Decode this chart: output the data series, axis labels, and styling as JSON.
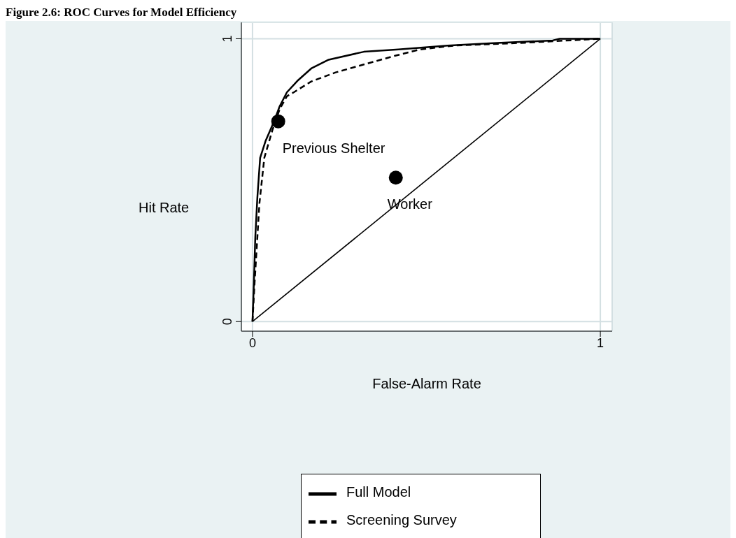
{
  "chart_data": {
    "type": "line",
    "title": "Figure 2.6: ROC Curves for Model Efficiency",
    "xlabel": "False-Alarm Rate",
    "ylabel": "Hit Rate",
    "xlim": [
      -0.032,
      1.034
    ],
    "ylim": [
      -0.034,
      1.058
    ],
    "xticks": [
      0,
      1
    ],
    "yticks": [
      0,
      1
    ],
    "grid": true,
    "legend": "bottom",
    "series": [
      {
        "name": "Full Model",
        "color": "#000000",
        "line_style": "solid",
        "marker": "none",
        "x": [
          0,
          0.004,
          0.008,
          0.014,
          0.022,
          0.038,
          0.062,
          0.078,
          0.099,
          0.129,
          0.169,
          0.219,
          0.32,
          0.42,
          0.561,
          0.682,
          0.863,
          0.883,
          1
        ],
        "values": [
          0,
          0.137,
          0.298,
          0.439,
          0.579,
          0.64,
          0.708,
          0.761,
          0.811,
          0.851,
          0.895,
          0.926,
          0.954,
          0.962,
          0.976,
          0.984,
          0.994,
          1,
          1
        ]
      },
      {
        "name": "Screening Survey",
        "color": "#000000",
        "line_style": "dashed",
        "marker": "none",
        "x": [
          0,
          0.006,
          0.012,
          0.02,
          0.034,
          0.058,
          0.078,
          0.099,
          0.119,
          0.169,
          0.239,
          0.32,
          0.41,
          0.481,
          0.581,
          0.783,
          1
        ],
        "values": [
          0,
          0.137,
          0.258,
          0.419,
          0.579,
          0.68,
          0.751,
          0.797,
          0.811,
          0.849,
          0.881,
          0.909,
          0.94,
          0.962,
          0.976,
          0.986,
          1
        ]
      },
      {
        "type": "line",
        "color": "#000000",
        "line_style": "solid",
        "marker": "none",
        "x": [
          0,
          1
        ],
        "values": [
          0,
          1
        ]
      },
      {
        "type": "scatter",
        "name": "Previous Shelter",
        "color": "#000000",
        "marker": "circle",
        "x": [
          0.074
        ],
        "values": [
          0.708
        ]
      },
      {
        "type": "scatter",
        "name": "Worker",
        "color": "#000000",
        "marker": "circle",
        "x": [
          0.412
        ],
        "values": [
          0.509
        ]
      }
    ]
  }
}
